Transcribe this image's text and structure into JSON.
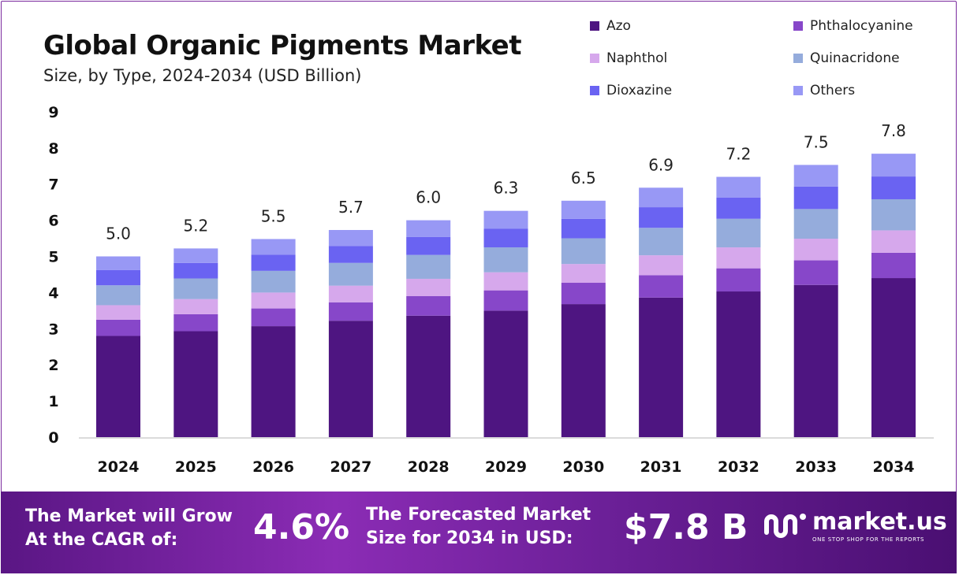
{
  "header": {
    "title": "Global Organic Pigments Market",
    "subtitle": "Size, by Type, 2024-2034 (USD Billion)"
  },
  "legend": [
    {
      "label": "Azo",
      "color": "#4e1581"
    },
    {
      "label": "Phthalocyanine",
      "color": "#8747c9"
    },
    {
      "label": "Naphthol",
      "color": "#d6a8ec"
    },
    {
      "label": "Quinacridone",
      "color": "#95acdc"
    },
    {
      "label": "Dioxazine",
      "color": "#6a63f2"
    },
    {
      "label": "Others",
      "color": "#9898f5"
    }
  ],
  "chart_data": {
    "type": "bar",
    "stacked": true,
    "title": "Global Organic Pigments Market",
    "subtitle": "Size, by Type, 2024-2034 (USD Billion)",
    "categories": [
      "2024",
      "2025",
      "2026",
      "2027",
      "2028",
      "2029",
      "2030",
      "2031",
      "2032",
      "2033",
      "2034"
    ],
    "totals": [
      "5.0",
      "5.2",
      "5.5",
      "5.7",
      "6.0",
      "6.3",
      "6.5",
      "6.9",
      "7.2",
      "7.5",
      "7.8"
    ],
    "series": [
      {
        "name": "Azo",
        "values": [
          2.8,
          2.93,
          3.07,
          3.22,
          3.36,
          3.5,
          3.68,
          3.86,
          4.03,
          4.21,
          4.4
        ]
      },
      {
        "name": "Phthalocyanine",
        "values": [
          0.45,
          0.47,
          0.49,
          0.51,
          0.54,
          0.56,
          0.59,
          0.62,
          0.64,
          0.68,
          0.7
        ]
      },
      {
        "name": "Naphthol",
        "values": [
          0.4,
          0.42,
          0.44,
          0.46,
          0.48,
          0.5,
          0.52,
          0.55,
          0.58,
          0.6,
          0.62
        ]
      },
      {
        "name": "Quinacridone",
        "values": [
          0.55,
          0.57,
          0.6,
          0.63,
          0.66,
          0.69,
          0.71,
          0.76,
          0.79,
          0.82,
          0.86
        ]
      },
      {
        "name": "Dioxazine",
        "values": [
          0.42,
          0.43,
          0.45,
          0.47,
          0.5,
          0.52,
          0.54,
          0.57,
          0.59,
          0.62,
          0.63
        ]
      },
      {
        "name": "Others",
        "values": [
          0.38,
          0.4,
          0.43,
          0.44,
          0.46,
          0.49,
          0.5,
          0.54,
          0.57,
          0.6,
          0.63
        ]
      }
    ],
    "ylim": [
      0,
      9
    ],
    "yticks": [
      "0",
      "1",
      "2",
      "3",
      "4",
      "5",
      "6",
      "7",
      "8",
      "9"
    ],
    "grid": false,
    "legend_position": "top-right"
  },
  "footer": {
    "cagr_label_line1": "The Market will Grow",
    "cagr_label_line2": "At the CAGR of:",
    "cagr_value": "4.6%",
    "forecast_label_line1": "The Forecasted Market",
    "forecast_label_line2": "Size for 2034 in USD:",
    "forecast_value": "$7.8 B",
    "logo_text": "market.us",
    "logo_tagline": "ONE STOP SHOP FOR THE REPORTS",
    "logo_icon": "market-us-logo-icon"
  }
}
